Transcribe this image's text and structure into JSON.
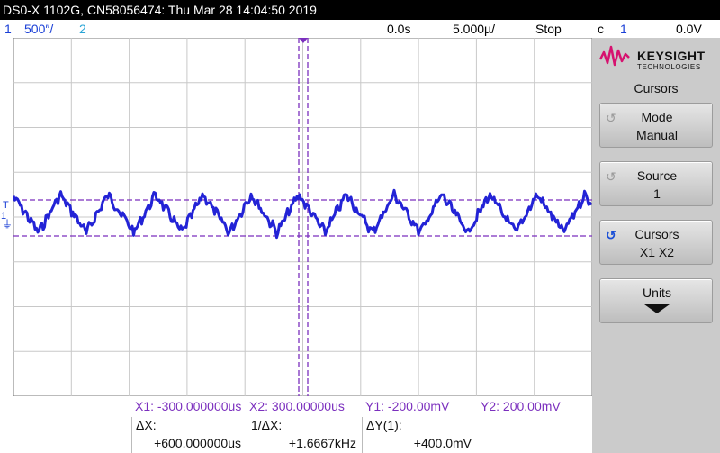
{
  "header": {
    "title": "DS0-X 1102G, CN58056474: Thu Mar 28 14:04:50 2019"
  },
  "status": {
    "ch1_num": "1",
    "ch1_scale": "500″/",
    "ch2_num": "2",
    "time_offset": "0.0s",
    "time_scale": "5.000µ/",
    "run_state": "Stop",
    "trigger_icon": "ϲ",
    "trigger_source": "1",
    "trigger_level": "0.0V"
  },
  "plot": {
    "ch1_marker": "1",
    "trigger_marker": "T",
    "ground_marker": "⏚",
    "waveform_color": "#2323d6",
    "cursor_color": "#7b2fbe",
    "grid_divisions_x": 10,
    "grid_divisions_y": 8
  },
  "sidebar": {
    "brand": "KEYSIGHT",
    "brand_sub": "TECHNOLOGIES",
    "menu_title": "Cursors",
    "softkeys": [
      {
        "line1": "Mode",
        "line2": "Manual",
        "icon": "↺"
      },
      {
        "line1": "Source",
        "line2": "1",
        "icon": "↺"
      },
      {
        "line1": "Cursors",
        "line2": "X1 X2",
        "icon": "↺"
      },
      {
        "line1": "Units",
        "line2": ""
      }
    ]
  },
  "cursors": {
    "x1_label": "X1: -300.000000us",
    "x2_label": "X2:  300.00000us",
    "y1_label": "Y1: -200.00mV",
    "y2_label": "Y2:  200.00mV",
    "dx_label": "ΔX:",
    "dx_value": "+600.000000us",
    "inv_dx_label": "1/ΔX:",
    "inv_dx_value": "+1.6667kHz",
    "dy_label": "ΔY(1):",
    "dy_value": "+400.0mV"
  }
}
